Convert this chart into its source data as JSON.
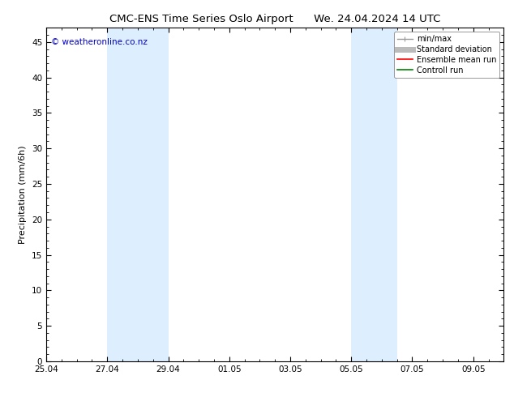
{
  "title_left": "CMC-ENS Time Series Oslo Airport",
  "title_right": "We. 24.04.2024 14 UTC",
  "ylabel": "Precipitation (mm/6h)",
  "watermark": "© weatheronline.co.nz",
  "watermark_color": "#0000cc",
  "background_color": "#ffffff",
  "plot_bg_color": "#ffffff",
  "ylim": [
    0,
    47
  ],
  "yticks": [
    0,
    5,
    10,
    15,
    20,
    25,
    30,
    35,
    40,
    45
  ],
  "xlim": [
    0,
    15
  ],
  "xtick_labels": [
    "25.04",
    "27.04",
    "29.04",
    "01.05",
    "03.05",
    "05.05",
    "07.05",
    "09.05"
  ],
  "xtick_positions_days": [
    0,
    2,
    4,
    6,
    8,
    10,
    12,
    14
  ],
  "shaded_regions": [
    {
      "start_day": 2,
      "end_day": 4,
      "color": "#ddeeff",
      "alpha": 1.0
    },
    {
      "start_day": 10,
      "end_day": 11.5,
      "color": "#ddeeff",
      "alpha": 1.0
    }
  ],
  "legend_entries": [
    {
      "label": "min/max",
      "color": "#999999",
      "lw": 1.0
    },
    {
      "label": "Standard deviation",
      "color": "#bbbbbb",
      "lw": 5
    },
    {
      "label": "Ensemble mean run",
      "color": "#ff0000",
      "lw": 1.2
    },
    {
      "label": "Controll run",
      "color": "#008000",
      "lw": 1.2
    }
  ],
  "title_fontsize": 9.5,
  "axis_label_fontsize": 8,
  "tick_fontsize": 7.5,
  "legend_fontsize": 7,
  "watermark_fontsize": 7.5
}
